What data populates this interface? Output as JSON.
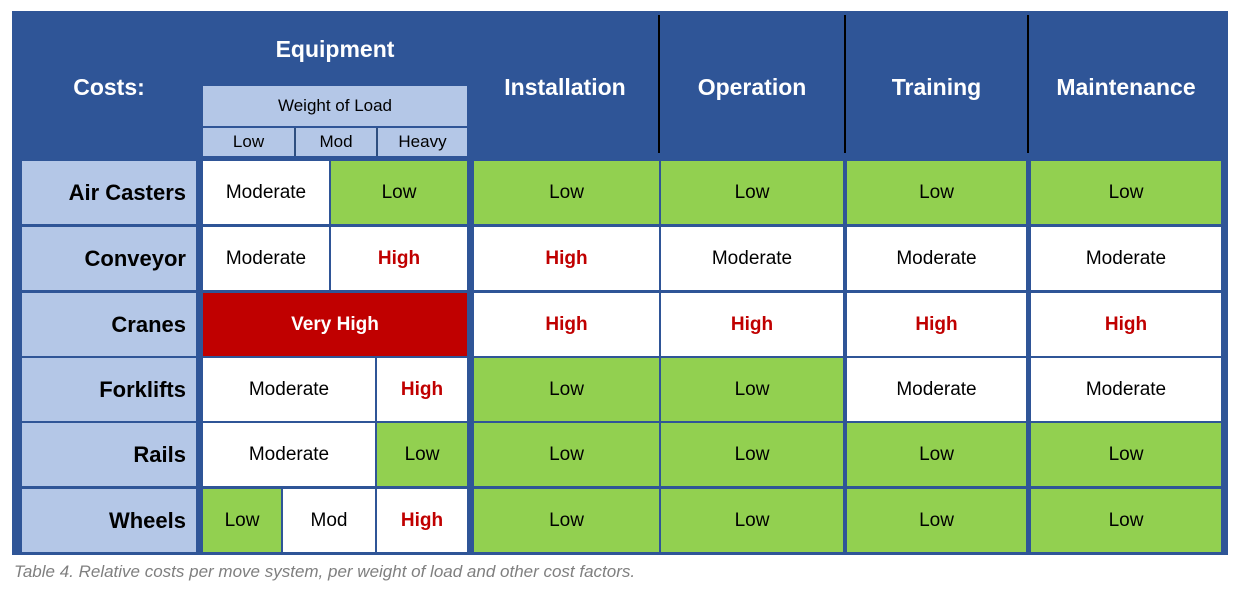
{
  "header": {
    "costs_label": "Costs:",
    "equipment_label": "Equipment",
    "weight_label": "Weight of Load",
    "weight_levels": [
      "Low",
      "Mod",
      "Heavy"
    ],
    "columns": [
      "Installation",
      "Operation",
      "Training",
      "Maintenance"
    ]
  },
  "rows": [
    {
      "label": "Air Casters",
      "equipment": [
        {
          "text": "Moderate",
          "level": "moderate"
        },
        {
          "text": "Low",
          "level": "low"
        }
      ],
      "factors": [
        {
          "text": "Low",
          "level": "low"
        },
        {
          "text": "Low",
          "level": "low"
        },
        {
          "text": "Low",
          "level": "low"
        },
        {
          "text": "Low",
          "level": "low"
        }
      ]
    },
    {
      "label": "Conveyor",
      "equipment": [
        {
          "text": "Moderate",
          "level": "moderate"
        },
        {
          "text": "High",
          "level": "high"
        }
      ],
      "factors": [
        {
          "text": "High",
          "level": "high"
        },
        {
          "text": "Moderate",
          "level": "moderate"
        },
        {
          "text": "Moderate",
          "level": "moderate"
        },
        {
          "text": "Moderate",
          "level": "moderate"
        }
      ]
    },
    {
      "label": "Cranes",
      "equipment": [
        {
          "text": "Very High",
          "level": "veryhigh"
        }
      ],
      "factors": [
        {
          "text": "High",
          "level": "high"
        },
        {
          "text": "High",
          "level": "high"
        },
        {
          "text": "High",
          "level": "high"
        },
        {
          "text": "High",
          "level": "high"
        }
      ]
    },
    {
      "label": "Forklifts",
      "equipment": [
        {
          "text": "Moderate",
          "level": "moderate"
        },
        {
          "text": "High",
          "level": "high"
        }
      ],
      "factors": [
        {
          "text": "Low",
          "level": "low"
        },
        {
          "text": "Low",
          "level": "low"
        },
        {
          "text": "Moderate",
          "level": "moderate"
        },
        {
          "text": "Moderate",
          "level": "moderate"
        }
      ]
    },
    {
      "label": "Rails",
      "equipment": [
        {
          "text": "Moderate",
          "level": "moderate"
        },
        {
          "text": "Low",
          "level": "low"
        }
      ],
      "factors": [
        {
          "text": "Low",
          "level": "low"
        },
        {
          "text": "Low",
          "level": "low"
        },
        {
          "text": "Low",
          "level": "low"
        },
        {
          "text": "Low",
          "level": "low"
        }
      ]
    },
    {
      "label": "Wheels",
      "equipment": [
        {
          "text": "Low",
          "level": "low"
        },
        {
          "text": "Mod",
          "level": "mod"
        },
        {
          "text": "High",
          "level": "high"
        }
      ],
      "factors": [
        {
          "text": "Low",
          "level": "low"
        },
        {
          "text": "Low",
          "level": "low"
        },
        {
          "text": "Low",
          "level": "low"
        },
        {
          "text": "Low",
          "level": "low"
        }
      ]
    }
  ],
  "colors": {
    "header_blue": "#2f5597",
    "sub_header": "#b4c7e7",
    "low_green": "#92d050",
    "high_red_text": "#c00000",
    "very_high_fill": "#c00000"
  },
  "caption": "Table 4. Relative costs per move system, per weight of load and other cost factors."
}
